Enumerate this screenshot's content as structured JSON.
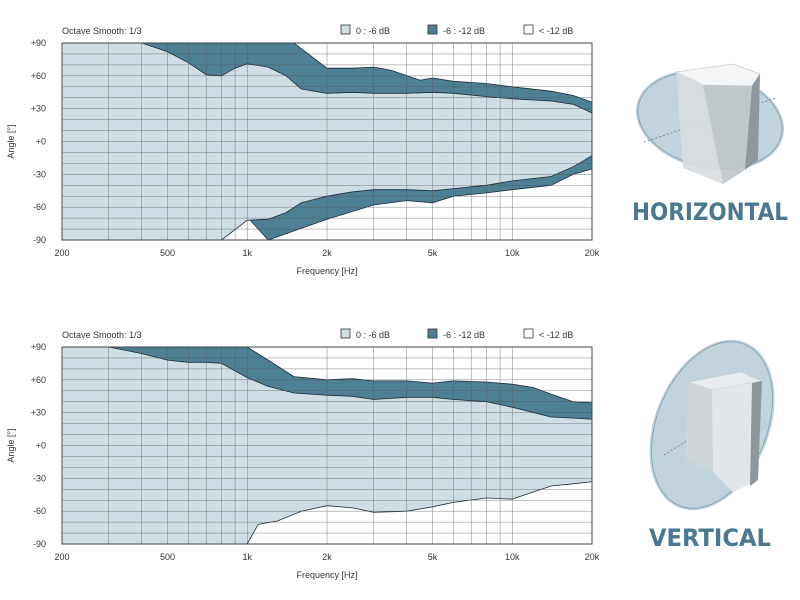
{
  "colors": {
    "band_0_6": "#cfdde5",
    "band_6_12": "#4d7f95",
    "band_below_12": "#ffffff",
    "label": "#4a7890",
    "grid": "#555555"
  },
  "chart_data": [
    {
      "type": "area",
      "name": "horizontal-directivity",
      "title": "Octave Smooth: 1/3",
      "xlabel": "Frequency    [Hz]",
      "ylabel": "Angle    [°]",
      "xscale": "log",
      "xlim": [
        200,
        20000
      ],
      "ylim": [
        -90,
        90
      ],
      "x_ticks": [
        {
          "v": 200,
          "label": "200"
        },
        {
          "v": 500,
          "label": "500"
        },
        {
          "v": 1000,
          "label": "1k"
        },
        {
          "v": 2000,
          "label": "2k"
        },
        {
          "v": 5000,
          "label": "5k"
        },
        {
          "v": 10000,
          "label": "10k"
        },
        {
          "v": 20000,
          "label": "20k"
        }
      ],
      "y_ticks": [
        {
          "v": 90,
          "label": "+90"
        },
        {
          "v": 60,
          "label": "+60"
        },
        {
          "v": 30,
          "label": "+30"
        },
        {
          "v": 0,
          "label": "+0"
        },
        {
          "v": -30,
          "label": "-30"
        },
        {
          "v": -60,
          "label": "-60"
        },
        {
          "v": -90,
          "label": "-90"
        }
      ],
      "legend": [
        {
          "label": "0 : -6 dB",
          "color": "#cfdde5"
        },
        {
          "label": "-6 : -12 dB",
          "color": "#4d7f95"
        },
        {
          "label": "< -12 dB",
          "color": "#ffffff"
        }
      ],
      "grid": true,
      "side_label": "HORIZONTAL",
      "contour_6db_upper": [
        [
          200,
          90
        ],
        [
          400,
          90
        ],
        [
          500,
          82
        ],
        [
          600,
          72
        ],
        [
          700,
          61
        ],
        [
          800,
          60
        ],
        [
          900,
          67
        ],
        [
          1000,
          71
        ],
        [
          1200,
          68
        ],
        [
          1400,
          60
        ],
        [
          1600,
          48
        ],
        [
          2000,
          44
        ],
        [
          2500,
          45
        ],
        [
          3000,
          44
        ],
        [
          4000,
          44
        ],
        [
          5000,
          45
        ],
        [
          6000,
          44
        ],
        [
          8000,
          41
        ],
        [
          10000,
          39
        ],
        [
          14000,
          37
        ],
        [
          17000,
          34
        ],
        [
          20000,
          26
        ]
      ],
      "contour_12db_upper": [
        [
          200,
          90
        ],
        [
          1500,
          90
        ],
        [
          2000,
          67
        ],
        [
          2500,
          67
        ],
        [
          3000,
          68
        ],
        [
          3500,
          65
        ],
        [
          4500,
          56
        ],
        [
          5000,
          58
        ],
        [
          6000,
          55
        ],
        [
          8000,
          53
        ],
        [
          10000,
          50
        ],
        [
          14000,
          46
        ],
        [
          17000,
          42
        ],
        [
          20000,
          36
        ]
      ],
      "contour_6db_lower": [
        [
          200,
          -90
        ],
        [
          800,
          -90
        ],
        [
          1000,
          -72
        ],
        [
          1200,
          -71
        ],
        [
          1400,
          -65
        ],
        [
          1600,
          -56
        ],
        [
          2000,
          -50
        ],
        [
          2500,
          -46
        ],
        [
          3000,
          -44
        ],
        [
          4000,
          -44
        ],
        [
          5000,
          -45
        ],
        [
          6000,
          -43
        ],
        [
          8000,
          -40
        ],
        [
          10000,
          -36
        ],
        [
          14000,
          -32
        ],
        [
          17000,
          -23
        ],
        [
          20000,
          -13
        ]
      ],
      "contour_12db_lower": [
        [
          200,
          -90
        ],
        [
          400,
          -90
        ],
        [
          450,
          -81
        ],
        [
          550,
          -81
        ],
        [
          650,
          -72
        ],
        [
          750,
          -60
        ],
        [
          850,
          -64
        ],
        [
          1000,
          -69
        ],
        [
          1200,
          -90
        ],
        [
          2000,
          -71
        ],
        [
          3000,
          -58
        ],
        [
          4000,
          -54
        ],
        [
          5000,
          -56
        ],
        [
          6000,
          -50
        ],
        [
          8000,
          -47
        ],
        [
          10000,
          -44
        ],
        [
          14000,
          -40
        ],
        [
          17000,
          -30
        ],
        [
          20000,
          -25
        ]
      ]
    },
    {
      "type": "area",
      "name": "vertical-directivity",
      "title": "Octave Smooth: 1/3",
      "xlabel": "Frequency    [Hz]",
      "ylabel": "Angle    [°]",
      "xscale": "log",
      "xlim": [
        200,
        20000
      ],
      "ylim": [
        -90,
        90
      ],
      "x_ticks": [
        {
          "v": 200,
          "label": "200"
        },
        {
          "v": 500,
          "label": "500"
        },
        {
          "v": 1000,
          "label": "1k"
        },
        {
          "v": 2000,
          "label": "2k"
        },
        {
          "v": 5000,
          "label": "5k"
        },
        {
          "v": 10000,
          "label": "10k"
        },
        {
          "v": 20000,
          "label": "20k"
        }
      ],
      "y_ticks": [
        {
          "v": 90,
          "label": "+90"
        },
        {
          "v": 60,
          "label": "+60"
        },
        {
          "v": 30,
          "label": "+30"
        },
        {
          "v": 0,
          "label": "+0"
        },
        {
          "v": -30,
          "label": "-30"
        },
        {
          "v": -60,
          "label": "-60"
        },
        {
          "v": -90,
          "label": "-90"
        }
      ],
      "legend": [
        {
          "label": "0 : -6 dB",
          "color": "#cfdde5"
        },
        {
          "label": "-6 : -12 dB",
          "color": "#4d7f95"
        },
        {
          "label": "< -12 dB",
          "color": "#ffffff"
        }
      ],
      "grid": true,
      "side_label": "VERTICAL",
      "contour_6db_upper": [
        [
          200,
          90
        ],
        [
          300,
          90
        ],
        [
          400,
          84
        ],
        [
          500,
          78
        ],
        [
          600,
          76
        ],
        [
          700,
          76
        ],
        [
          800,
          75
        ],
        [
          1000,
          62
        ],
        [
          1200,
          54
        ],
        [
          1500,
          48
        ],
        [
          2000,
          46
        ],
        [
          2500,
          45
        ],
        [
          3000,
          42
        ],
        [
          4000,
          44
        ],
        [
          5000,
          44
        ],
        [
          6000,
          42
        ],
        [
          8000,
          40
        ],
        [
          10000,
          35
        ],
        [
          14000,
          26
        ],
        [
          17000,
          25
        ],
        [
          20000,
          24
        ]
      ],
      "contour_12db_upper": [
        [
          200,
          90
        ],
        [
          1000,
          90
        ],
        [
          1200,
          78
        ],
        [
          1500,
          63
        ],
        [
          2000,
          60
        ],
        [
          2500,
          61
        ],
        [
          3000,
          59
        ],
        [
          4000,
          59
        ],
        [
          5000,
          57
        ],
        [
          6000,
          59
        ],
        [
          8000,
          58
        ],
        [
          10000,
          56
        ],
        [
          12000,
          53
        ],
        [
          14000,
          47
        ],
        [
          17000,
          40
        ],
        [
          20000,
          39
        ]
      ],
      "contour_6db_lower": [
        [
          200,
          -90
        ],
        [
          1000,
          -90
        ],
        [
          1100,
          -72
        ],
        [
          1300,
          -69
        ],
        [
          1600,
          -60
        ],
        [
          2000,
          -55
        ],
        [
          2500,
          -57
        ],
        [
          3000,
          -61
        ],
        [
          4000,
          -60
        ],
        [
          5000,
          -56
        ],
        [
          6000,
          -52
        ],
        [
          8000,
          -48
        ],
        [
          10000,
          -49
        ],
        [
          14000,
          -37
        ],
        [
          17000,
          -35
        ],
        [
          20000,
          -33
        ]
      ],
      "contour_12db_lower": [
        [
          200,
          -90
        ],
        [
          300,
          -88
        ],
        [
          400,
          -86
        ],
        [
          500,
          -75
        ],
        [
          600,
          -77
        ],
        [
          700,
          -73
        ],
        [
          800,
          -60
        ],
        [
          900,
          -51
        ],
        [
          1000,
          -53
        ],
        [
          1200,
          -52
        ],
        [
          1500,
          -39
        ],
        [
          2000,
          -37
        ],
        [
          2500,
          -33
        ],
        [
          3000,
          -33
        ],
        [
          4000,
          -32
        ],
        [
          5000,
          -30
        ],
        [
          6000,
          -27
        ],
        [
          8000,
          -25
        ],
        [
          10000,
          -25
        ],
        [
          14000,
          -21
        ],
        [
          17000,
          -19
        ],
        [
          20000,
          -18
        ]
      ]
    }
  ]
}
